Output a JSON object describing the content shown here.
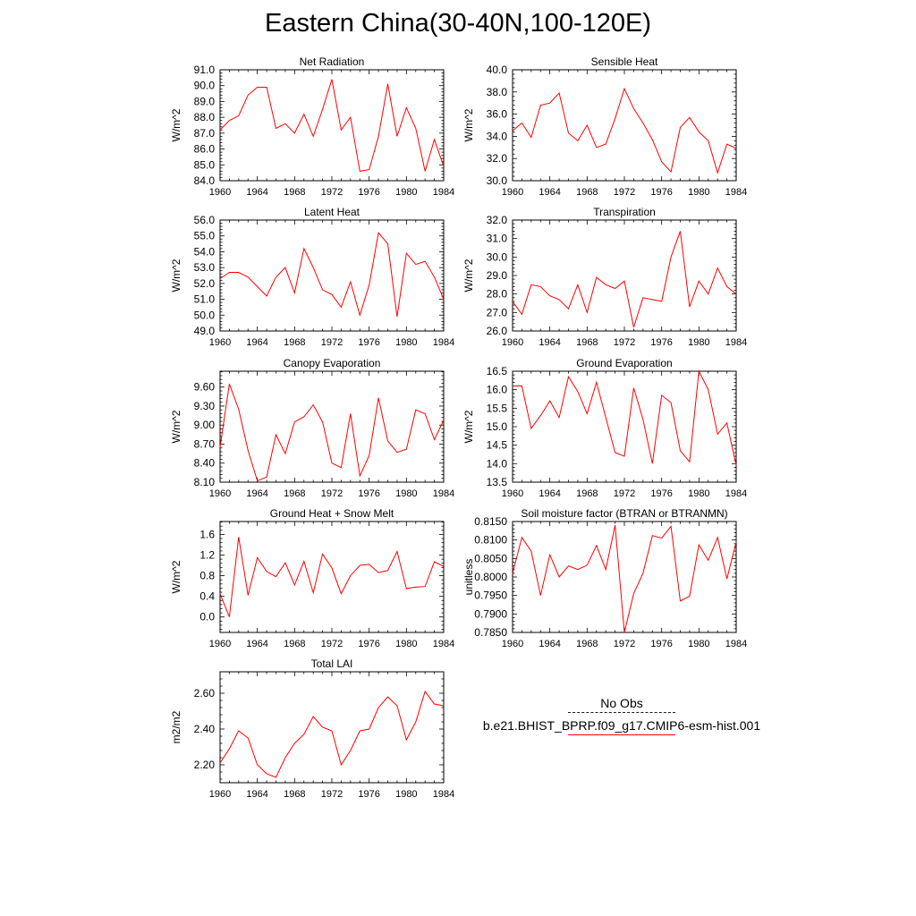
{
  "title": "Eastern China(30-40N,100-120E)",
  "line_color": "#ff0000",
  "x_ticks": [
    "1960",
    "1964",
    "1968",
    "1972",
    "1976",
    "1980",
    "1984"
  ],
  "legend": {
    "obs_label": "No Obs",
    "model_label": "b.e21.BHIST_BPRP.f09_g17.CMIP6-esm-hist.001"
  },
  "chart_data": [
    {
      "type": "line",
      "title": "Net Radiation",
      "ylabel": "W/m^2",
      "x": [
        1960,
        1961,
        1962,
        1963,
        1964,
        1965,
        1966,
        1967,
        1968,
        1969,
        1970,
        1971,
        1972,
        1973,
        1974,
        1975,
        1976,
        1977,
        1978,
        1979,
        1980,
        1981,
        1982,
        1983,
        1984
      ],
      "ylim": [
        84.0,
        91.0
      ],
      "yticks": [
        "84.0",
        "85.0",
        "86.0",
        "87.0",
        "88.0",
        "89.0",
        "90.0",
        "91.0"
      ],
      "values": [
        87.2,
        87.8,
        88.1,
        89.4,
        89.9,
        89.9,
        87.3,
        87.6,
        87.0,
        88.2,
        86.8,
        88.5,
        90.4,
        87.2,
        88.0,
        84.6,
        84.7,
        86.8,
        90.1,
        86.8,
        88.6,
        87.3,
        84.6,
        86.6,
        84.9
      ]
    },
    {
      "type": "line",
      "title": "Sensible Heat",
      "ylabel": "W/m^2",
      "x": [
        1960,
        1961,
        1962,
        1963,
        1964,
        1965,
        1966,
        1967,
        1968,
        1969,
        1970,
        1971,
        1972,
        1973,
        1974,
        1975,
        1976,
        1977,
        1978,
        1979,
        1980,
        1981,
        1982,
        1983,
        1984
      ],
      "ylim": [
        30.0,
        40.0
      ],
      "yticks": [
        "30.0",
        "32.0",
        "34.0",
        "36.0",
        "38.0",
        "40.0"
      ],
      "values": [
        34.5,
        35.2,
        33.9,
        36.8,
        37.0,
        37.9,
        34.3,
        33.6,
        35.0,
        33.0,
        33.3,
        35.6,
        38.3,
        36.5,
        35.2,
        33.7,
        31.7,
        30.8,
        34.8,
        35.7,
        34.4,
        33.6,
        30.7,
        33.3,
        32.9
      ]
    },
    {
      "type": "line",
      "title": "Latent Heat",
      "ylabel": "W/m^2",
      "x": [
        1960,
        1961,
        1962,
        1963,
        1964,
        1965,
        1966,
        1967,
        1968,
        1969,
        1970,
        1971,
        1972,
        1973,
        1974,
        1975,
        1976,
        1977,
        1978,
        1979,
        1980,
        1981,
        1982,
        1983,
        1984
      ],
      "ylim": [
        49.0,
        56.0
      ],
      "yticks": [
        "49.0",
        "50.0",
        "51.0",
        "52.0",
        "53.0",
        "54.0",
        "55.0",
        "56.0"
      ],
      "values": [
        52.3,
        52.7,
        52.7,
        52.4,
        51.8,
        51.2,
        52.4,
        53.0,
        51.4,
        54.2,
        53.0,
        51.6,
        51.3,
        50.5,
        52.1,
        50.0,
        51.9,
        55.2,
        54.5,
        49.9,
        53.9,
        53.2,
        53.4,
        52.4,
        51.0
      ]
    },
    {
      "type": "line",
      "title": "Transpiration",
      "ylabel": "W/m^2",
      "x": [
        1960,
        1961,
        1962,
        1963,
        1964,
        1965,
        1966,
        1967,
        1968,
        1969,
        1970,
        1971,
        1972,
        1973,
        1974,
        1975,
        1976,
        1977,
        1978,
        1979,
        1980,
        1981,
        1982,
        1983,
        1984
      ],
      "ylim": [
        26.0,
        32.0
      ],
      "yticks": [
        "26.0",
        "27.0",
        "28.0",
        "29.0",
        "30.0",
        "31.0",
        "32.0"
      ],
      "values": [
        27.6,
        26.9,
        28.5,
        28.4,
        27.9,
        27.7,
        27.2,
        28.5,
        27.0,
        28.9,
        28.5,
        28.3,
        28.7,
        26.2,
        27.8,
        27.7,
        27.6,
        30.0,
        31.4,
        27.3,
        28.7,
        28.0,
        29.4,
        28.4,
        28.0
      ]
    },
    {
      "type": "line",
      "title": "Canopy Evaporation",
      "ylabel": "W/m^2",
      "x": [
        1960,
        1961,
        1962,
        1963,
        1964,
        1965,
        1966,
        1967,
        1968,
        1969,
        1970,
        1971,
        1972,
        1973,
        1974,
        1975,
        1976,
        1977,
        1978,
        1979,
        1980,
        1981,
        1982,
        1983,
        1984
      ],
      "ylim": [
        8.1,
        9.85
      ],
      "yticks": [
        "8.10",
        "8.40",
        "8.70",
        "9.00",
        "9.30",
        "9.60"
      ],
      "values": [
        8.65,
        9.65,
        9.25,
        8.6,
        8.12,
        8.18,
        8.85,
        8.55,
        9.05,
        9.13,
        9.32,
        9.05,
        8.4,
        8.33,
        9.18,
        8.2,
        8.52,
        9.43,
        8.75,
        8.57,
        8.62,
        9.24,
        9.18,
        8.77,
        9.08
      ]
    },
    {
      "type": "line",
      "title": "Ground Evaporation",
      "ylabel": "W/m^2",
      "x": [
        1960,
        1961,
        1962,
        1963,
        1964,
        1965,
        1966,
        1967,
        1968,
        1969,
        1970,
        1971,
        1972,
        1973,
        1974,
        1975,
        1976,
        1977,
        1978,
        1979,
        1980,
        1981,
        1982,
        1983,
        1984
      ],
      "ylim": [
        13.5,
        16.5
      ],
      "yticks": [
        "13.5",
        "14.0",
        "14.5",
        "15.0",
        "15.5",
        "16.0",
        "16.5"
      ],
      "values": [
        16.1,
        16.1,
        14.95,
        15.3,
        15.7,
        15.25,
        16.35,
        15.95,
        15.35,
        16.2,
        15.25,
        14.3,
        14.2,
        16.05,
        15.2,
        14.0,
        15.85,
        15.65,
        14.35,
        14.05,
        16.5,
        16.0,
        14.8,
        15.1,
        13.95
      ]
    },
    {
      "type": "line",
      "title": "Ground Heat + Snow Melt",
      "ylabel": "W/m^2",
      "x": [
        1960,
        1961,
        1962,
        1963,
        1964,
        1965,
        1966,
        1967,
        1968,
        1969,
        1970,
        1971,
        1972,
        1973,
        1974,
        1975,
        1976,
        1977,
        1978,
        1979,
        1980,
        1981,
        1982,
        1983,
        1984
      ],
      "ylim": [
        -0.3,
        1.85
      ],
      "yticks": [
        "0.0",
        "0.4",
        "0.8",
        "1.2",
        "1.6"
      ],
      "values": [
        0.45,
        0.0,
        1.55,
        0.42,
        1.15,
        0.88,
        0.78,
        1.05,
        0.62,
        1.08,
        0.47,
        1.22,
        0.95,
        0.45,
        0.8,
        1.0,
        1.02,
        0.86,
        0.9,
        1.27,
        0.55,
        0.58,
        0.59,
        1.07,
        0.98
      ]
    },
    {
      "type": "line",
      "title": "Soil moisture factor (BTRAN or BTRANMN)",
      "ylabel": "unitless",
      "x": [
        1960,
        1961,
        1962,
        1963,
        1964,
        1965,
        1966,
        1967,
        1968,
        1969,
        1970,
        1971,
        1972,
        1973,
        1974,
        1975,
        1976,
        1977,
        1978,
        1979,
        1980,
        1981,
        1982,
        1983,
        1984
      ],
      "ylim": [
        0.785,
        0.815
      ],
      "yticks": [
        "0.7850",
        "0.7900",
        "0.7950",
        "0.8000",
        "0.8050",
        "0.8100",
        "0.8150"
      ],
      "values": [
        0.801,
        0.8107,
        0.807,
        0.795,
        0.806,
        0.8,
        0.803,
        0.802,
        0.8032,
        0.8085,
        0.802,
        0.814,
        0.785,
        0.7955,
        0.801,
        0.8112,
        0.8105,
        0.8137,
        0.7935,
        0.7948,
        0.8087,
        0.8045,
        0.8107,
        0.7995,
        0.8095
      ]
    },
    {
      "type": "line",
      "title": "Total LAI",
      "ylabel": "m2/m2",
      "x": [
        1960,
        1961,
        1962,
        1963,
        1964,
        1965,
        1966,
        1967,
        1968,
        1969,
        1970,
        1971,
        1972,
        1973,
        1974,
        1975,
        1976,
        1977,
        1978,
        1979,
        1980,
        1981,
        1982,
        1983,
        1984
      ],
      "ylim": [
        2.1,
        2.72
      ],
      "yticks": [
        "2.20",
        "2.40",
        "2.60"
      ],
      "values": [
        2.21,
        2.29,
        2.39,
        2.35,
        2.2,
        2.15,
        2.13,
        2.24,
        2.32,
        2.37,
        2.47,
        2.41,
        2.39,
        2.2,
        2.28,
        2.39,
        2.4,
        2.52,
        2.58,
        2.53,
        2.34,
        2.44,
        2.61,
        2.54,
        2.53
      ]
    }
  ]
}
